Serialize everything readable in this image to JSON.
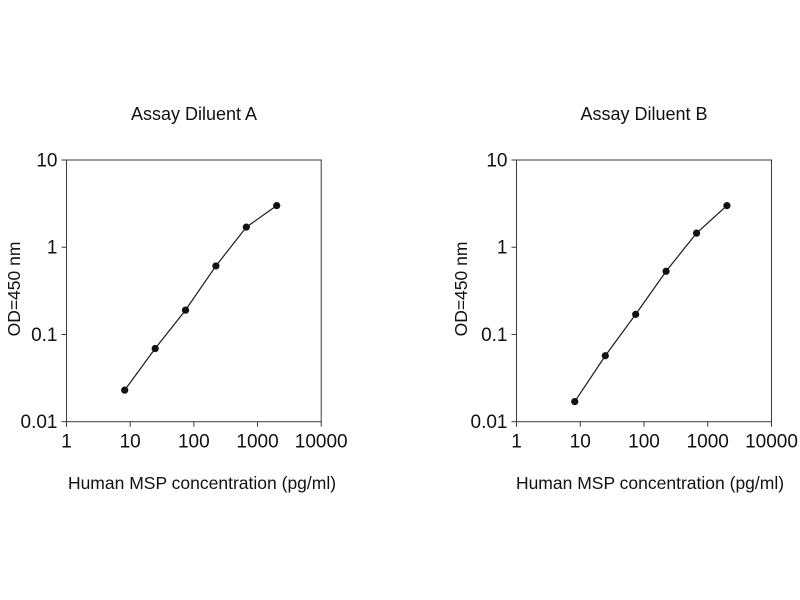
{
  "figure": {
    "background": "#ffffff",
    "text_color": "#111111"
  },
  "chart_data": [
    {
      "type": "line",
      "title": "Assay Diluent A",
      "xlabel": "Human MSP concentration (pg/ml)",
      "ylabel": "OD=450 nm",
      "xscale": "log",
      "yscale": "log",
      "xlim": [
        1,
        10000
      ],
      "ylim": [
        0.01,
        10
      ],
      "xticks": [
        1,
        10,
        100,
        1000,
        10000
      ],
      "xtick_labels": [
        "1",
        "10",
        "100",
        "1000",
        "10000"
      ],
      "yticks": [
        0.01,
        0.1,
        1,
        10
      ],
      "ytick_labels": [
        "0.01",
        "0.1",
        "1",
        "10"
      ],
      "x": [
        8.2,
        24.7,
        74,
        222,
        667,
        2000
      ],
      "y": [
        0.023,
        0.069,
        0.19,
        0.61,
        1.7,
        3.0
      ],
      "grid": false,
      "line_color": "#1a1a1a",
      "marker": "filled-circle",
      "marker_color": "#111111"
    },
    {
      "type": "line",
      "title": "Assay Diluent B",
      "xlabel": "Human MSP concentration (pg/ml)",
      "ylabel": "OD=450 nm",
      "xscale": "log",
      "yscale": "log",
      "xlim": [
        1,
        10000
      ],
      "ylim": [
        0.01,
        10
      ],
      "xticks": [
        1,
        10,
        100,
        1000,
        10000
      ],
      "xtick_labels": [
        "1",
        "10",
        "100",
        "1000",
        "10000"
      ],
      "yticks": [
        0.01,
        0.1,
        1,
        10
      ],
      "ytick_labels": [
        "0.01",
        "0.1",
        "1",
        "10"
      ],
      "x": [
        8.2,
        24.7,
        74,
        222,
        667,
        2000
      ],
      "y": [
        0.017,
        0.057,
        0.17,
        0.53,
        1.45,
        3.0
      ],
      "grid": false,
      "line_color": "#1a1a1a",
      "marker": "filled-circle",
      "marker_color": "#111111"
    }
  ]
}
